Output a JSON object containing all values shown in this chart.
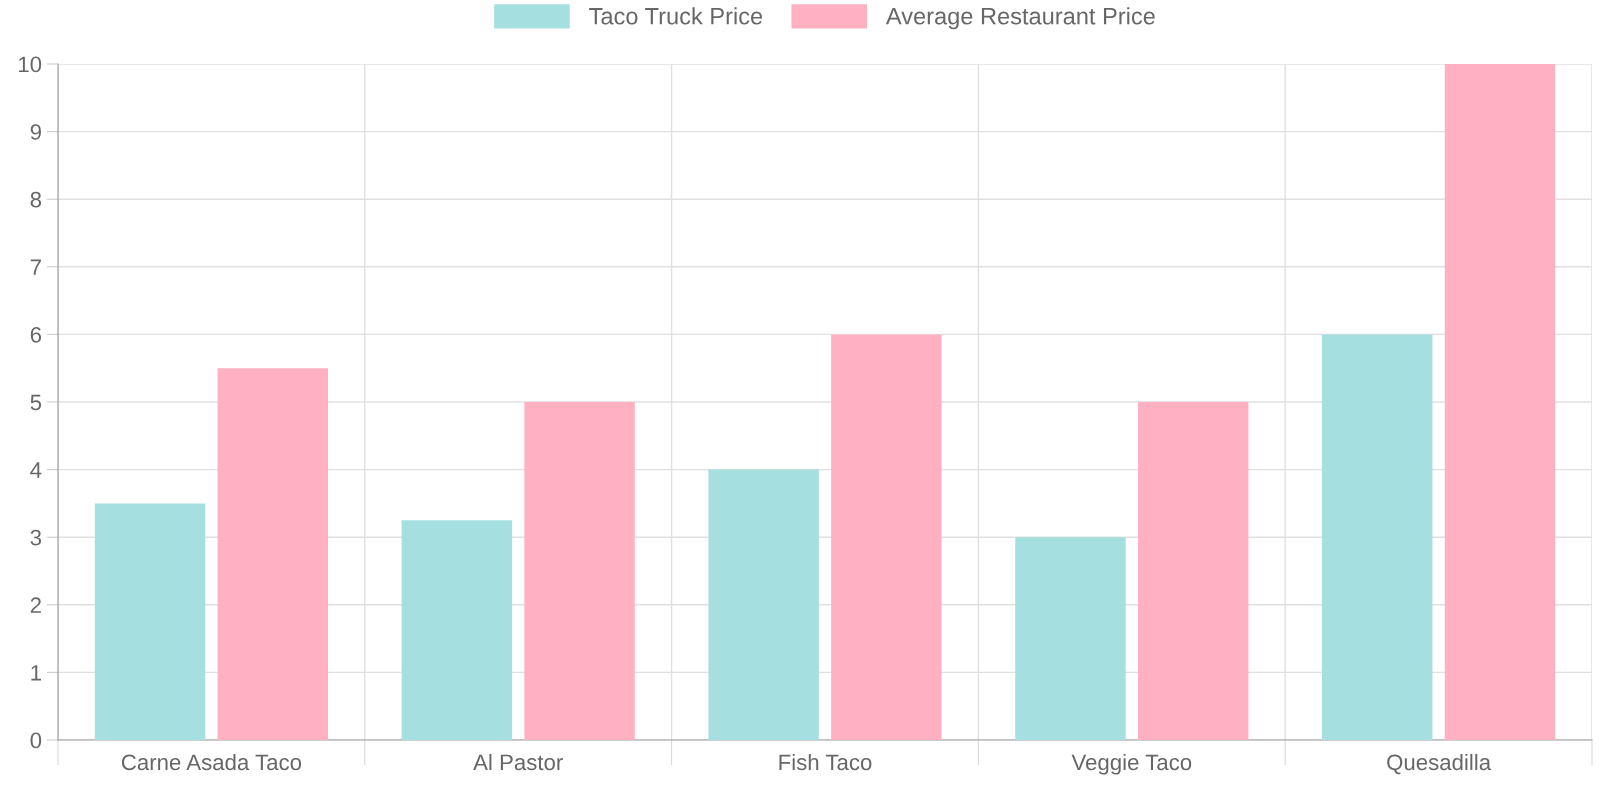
{
  "chart_data": {
    "type": "bar",
    "categories": [
      "Carne Asada Taco",
      "Al Pastor",
      "Fish Taco",
      "Veggie Taco",
      "Quesadilla"
    ],
    "series": [
      {
        "name": "Taco Truck Price",
        "color": "#a5dfdf",
        "values": [
          3.5,
          3.25,
          4,
          3,
          6
        ]
      },
      {
        "name": "Average Restaurant Price",
        "color": "#ffb1c1",
        "values": [
          5.5,
          5,
          6,
          5,
          10
        ]
      }
    ],
    "ylim": [
      0,
      10
    ],
    "yticks": [
      0,
      1,
      2,
      3,
      4,
      5,
      6,
      7,
      8,
      9,
      10
    ],
    "grid": true,
    "legend": "top"
  }
}
